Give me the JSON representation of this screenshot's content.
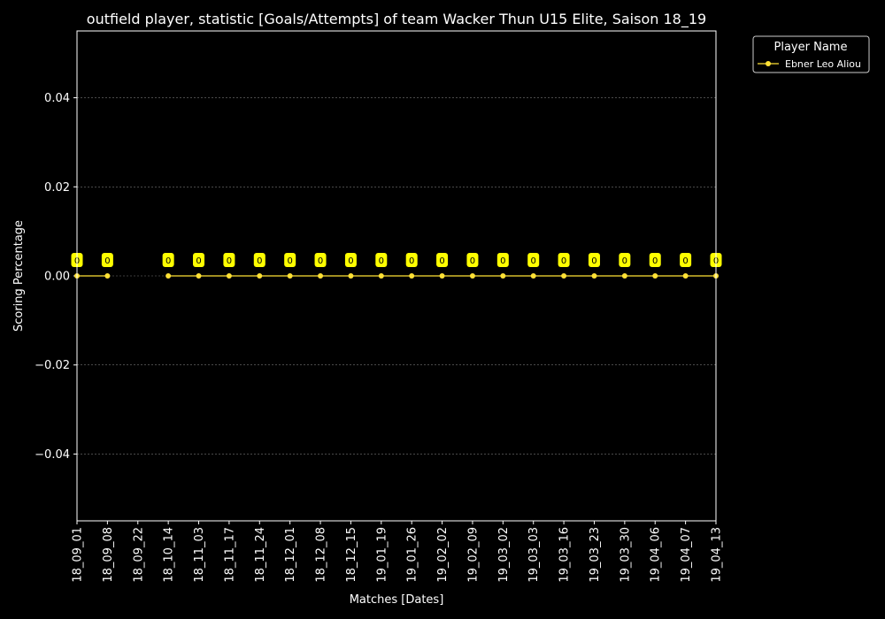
{
  "chart_data": {
    "type": "line",
    "title": "outfield player, statistic [Goals/Attempts] of team Wacker Thun U15 Elite, Saison 18_19",
    "xlabel": "Matches [Dates]",
    "ylabel": "Scoring Percentage",
    "categories": [
      "18_09_01",
      "18_09_08",
      "18_09_22",
      "18_10_14",
      "18_11_03",
      "18_11_17",
      "18_11_24",
      "18_12_01",
      "18_12_08",
      "18_12_15",
      "19_01_19",
      "19_01_26",
      "19_02_02",
      "19_02_09",
      "19_03_02",
      "19_03_03",
      "19_03_16",
      "19_03_23",
      "19_03_30",
      "19_04_06",
      "19_04_07",
      "19_04_13"
    ],
    "ylim": [
      -0.055,
      0.055
    ],
    "yticks": [
      -0.04,
      -0.02,
      0.0,
      0.02,
      0.04
    ],
    "ytick_labels": [
      "−0.04",
      "−0.02",
      "0.00",
      "0.02",
      "0.04"
    ],
    "grid": true,
    "legend": {
      "title": "Player Name",
      "position": "outside-top-right"
    },
    "series": [
      {
        "name": "Ebner Leo Aliou",
        "color": "#ffe135",
        "values": [
          0,
          0,
          null,
          0,
          0,
          0,
          0,
          0,
          0,
          0,
          0,
          0,
          0,
          0,
          0,
          0,
          0,
          0,
          0,
          0,
          0,
          0
        ],
        "labels": [
          "0",
          "0",
          null,
          "0",
          "0",
          "0",
          "0",
          "0",
          "0",
          "0",
          "0",
          "0",
          "0",
          "0",
          "0",
          "0",
          "0",
          "0",
          "0",
          "0",
          "0",
          "0"
        ]
      }
    ],
    "colors": {
      "background": "#000000",
      "axes": "#ffffff",
      "grid": "#777777",
      "label_box": "#ffff00"
    }
  }
}
